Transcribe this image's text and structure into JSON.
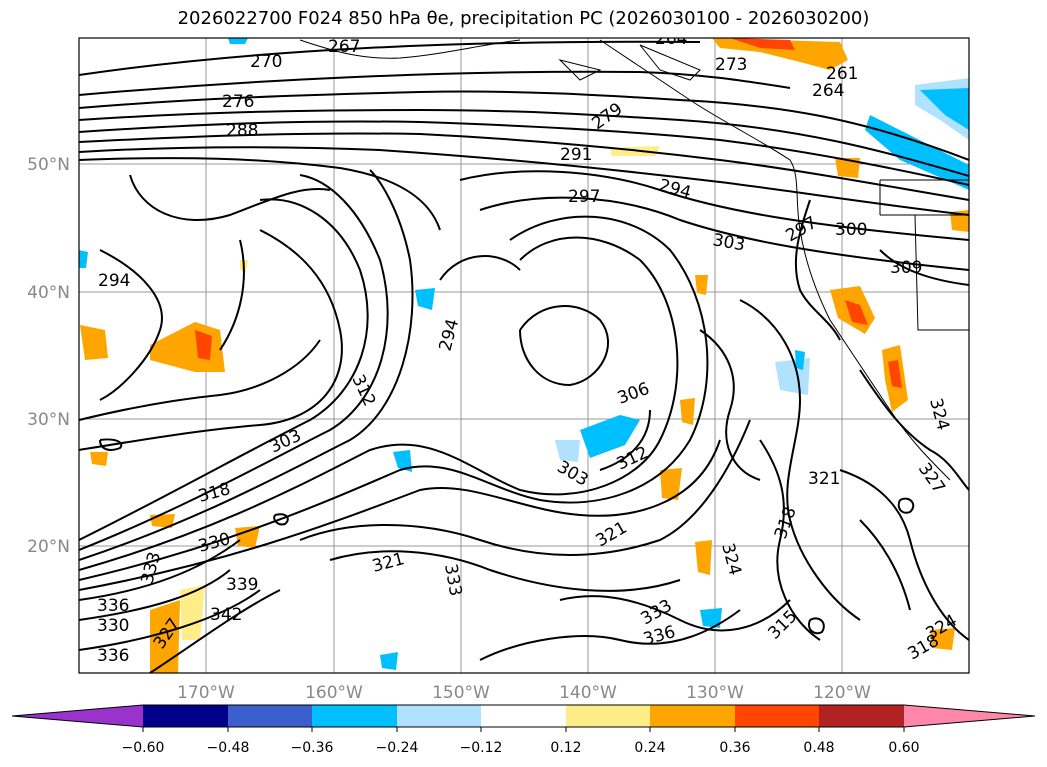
{
  "title": "2026022700 F024 850 hPa θe, precipitation PC (2026030100 - 2026030200)",
  "map": {
    "lat_ticks": [
      "50°N",
      "40°N",
      "30°N",
      "20°N"
    ],
    "lon_ticks": [
      "170°W",
      "160°W",
      "150°W",
      "140°W",
      "130°W",
      "120°W"
    ],
    "contour_labels": [
      "270",
      "267",
      "264",
      "273",
      "261",
      "276",
      "288",
      "279",
      "264",
      "291",
      "297",
      "294",
      "303",
      "297",
      "300",
      "309",
      "294",
      "294",
      "312",
      "306",
      "303",
      "303",
      "318",
      "330",
      "321",
      "321",
      "318",
      "333",
      "333",
      "336",
      "339",
      "342",
      "327",
      "330",
      "336",
      "333",
      "336",
      "324",
      "315",
      "321",
      "312",
      "324",
      "327",
      "324",
      "318"
    ]
  },
  "colorbar": {
    "ticks": [
      "−0.60",
      "−0.48",
      "−0.36",
      "−0.24",
      "−0.12",
      "0.12",
      "0.24",
      "0.36",
      "0.48",
      "0.60"
    ],
    "colors": [
      "#9933cc",
      "#00008b",
      "#3a5fcd",
      "#00bfff",
      "#b0e2ff",
      "#ffffff",
      "#ffee88",
      "#ffa500",
      "#ff4500",
      "#b22222",
      "#ff88aa"
    ]
  }
}
